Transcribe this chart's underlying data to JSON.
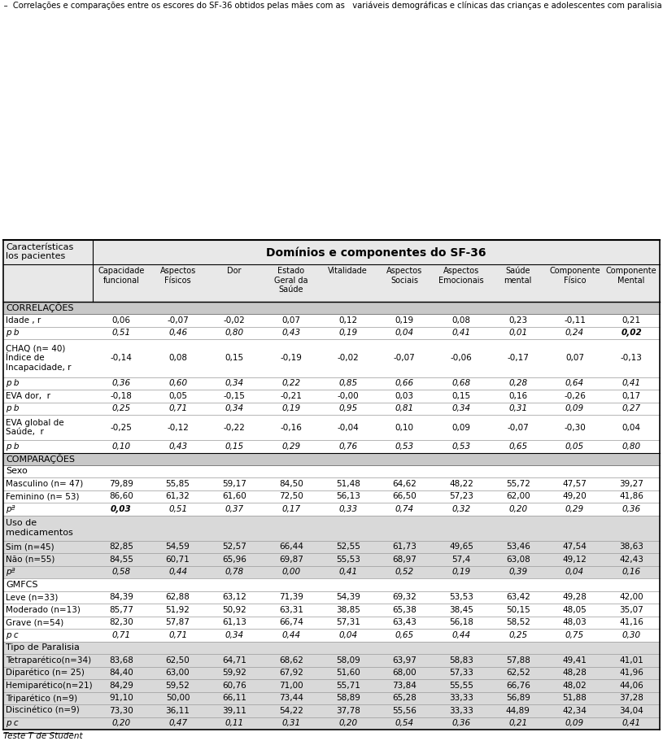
{
  "col_headers": [
    [
      "Capacidade",
      "funcional"
    ],
    [
      "Aspectos",
      "Físicos"
    ],
    [
      "Dor"
    ],
    [
      "Estado",
      "Geral da",
      "Saúde"
    ],
    [
      "Vitalidade"
    ],
    [
      "Aspectos",
      "Sociais"
    ],
    [
      "Aspectos",
      "Emocionais"
    ],
    [
      "Saúde",
      "mental"
    ],
    [
      "Componente",
      "Físico"
    ],
    [
      "Componente",
      "Mental"
    ]
  ],
  "rows": [
    {
      "type": "section_header",
      "label": "CORRELAÇÕES",
      "bg": "#c8c8c8"
    },
    {
      "type": "data",
      "label": "Idade , r",
      "italic": false,
      "values": [
        "0,06",
        "-0,07",
        "-0,02",
        "0,07",
        "0,12",
        "0,19",
        "0,08",
        "0,23",
        "-0,11",
        "0,21"
      ],
      "bold_vals": [],
      "bg": "white"
    },
    {
      "type": "data",
      "label": "p b",
      "italic": true,
      "label_parts": [
        [
          "p",
          false
        ],
        [
          " b",
          false
        ]
      ],
      "values": [
        "0,51",
        "0,46",
        "0,80",
        "0,43",
        "0,19",
        "0,04",
        "0,41",
        "0,01",
        "0,24",
        "0,02"
      ],
      "bold_vals": [
        9
      ],
      "bg": "white"
    },
    {
      "type": "data_multiline",
      "label": "CHAQ (n= 40)\nÍndice de\nIncapacidade, r",
      "italic": false,
      "values": [
        "-0,14",
        "0,08",
        "0,15",
        "-0,19",
        "-0,02",
        "-0,07",
        "-0,06",
        "-0,17",
        "0,07",
        "-0,13"
      ],
      "bold_vals": [],
      "bg": "white"
    },
    {
      "type": "data",
      "label": "p b",
      "italic": true,
      "values": [
        "0,36",
        "0,60",
        "0,34",
        "0,22",
        "0,85",
        "0,66",
        "0,68",
        "0,28",
        "0,64",
        "0,41"
      ],
      "bold_vals": [],
      "bg": "white"
    },
    {
      "type": "data",
      "label": "EVA dor,  r",
      "italic": false,
      "values": [
        "-0,18",
        "0,05",
        "-0,15",
        "-0,21",
        "-0,00",
        "0,03",
        "0,15",
        "0,16",
        "-0,26",
        "0,17"
      ],
      "bold_vals": [],
      "bg": "white"
    },
    {
      "type": "data",
      "label": "p b",
      "italic": true,
      "values": [
        "0,25",
        "0,71",
        "0,34",
        "0,19",
        "0,95",
        "0,81",
        "0,34",
        "0,31",
        "0,09",
        "0,27"
      ],
      "bold_vals": [],
      "bg": "white"
    },
    {
      "type": "data_multiline",
      "label": "EVA global de\nSaúde,  r",
      "italic": false,
      "values": [
        "-0,25",
        "-0,12",
        "-0,22",
        "-0,16",
        "-0,04",
        "0,10",
        "0,09",
        "-0,07",
        "-0,30",
        "0,04"
      ],
      "bold_vals": [],
      "bg": "white"
    },
    {
      "type": "data",
      "label": "p b",
      "italic": true,
      "values": [
        "0,10",
        "0,43",
        "0,15",
        "0,29",
        "0,76",
        "0,53",
        "0,53",
        "0,65",
        "0,05",
        "0,80"
      ],
      "bold_vals": [],
      "bg": "white"
    },
    {
      "type": "section_header",
      "label": "COMPARAÇÕES",
      "bg": "#c8c8c8"
    },
    {
      "type": "subheader",
      "label": "Sexo",
      "bg": "white"
    },
    {
      "type": "data",
      "label": "Masculino (n= 47)",
      "italic": false,
      "values": [
        "79,89",
        "55,85",
        "59,17",
        "84,50",
        "51,48",
        "64,62",
        "48,22",
        "55,72",
        "47,57",
        "39,27"
      ],
      "bold_vals": [],
      "bg": "white"
    },
    {
      "type": "data",
      "label": "Feminino (n= 53)",
      "italic": false,
      "values": [
        "86,60",
        "61,32",
        "61,60",
        "72,50",
        "56,13",
        "66,50",
        "57,23",
        "62,00",
        "49,20",
        "41,86"
      ],
      "bold_vals": [],
      "bg": "white"
    },
    {
      "type": "data",
      "label": "pª",
      "italic": true,
      "values": [
        "0,03",
        "0,51",
        "0,37",
        "0,17",
        "0,33",
        "0,74",
        "0,32",
        "0,20",
        "0,29",
        "0,36"
      ],
      "bold_vals": [
        0
      ],
      "bg": "white"
    },
    {
      "type": "subheader",
      "label": "Uso de\nmedicamentos",
      "bg": "#d9d9d9"
    },
    {
      "type": "data",
      "label": "Sim (n=45)",
      "italic": false,
      "values": [
        "82,85",
        "54,59",
        "52,57",
        "66,44",
        "52,55",
        "61,73",
        "49,65",
        "53,46",
        "47,54",
        "38,63"
      ],
      "bold_vals": [],
      "bg": "#d9d9d9"
    },
    {
      "type": "data",
      "label": "Não (n=55)",
      "italic": false,
      "values": [
        "84,55",
        "60,71",
        "65,96",
        "69,87",
        "55,53",
        "68,97",
        "57,4",
        "63,08",
        "49,12",
        "42,43"
      ],
      "bold_vals": [],
      "bg": "#d9d9d9"
    },
    {
      "type": "data",
      "label": "pª",
      "italic": true,
      "values": [
        "0,58",
        "0,44",
        "0,78",
        "0,00",
        "0,41",
        "0,52",
        "0,19",
        "0,39",
        "0,04",
        "0,16"
      ],
      "bold_vals": [],
      "bg": "#d9d9d9"
    },
    {
      "type": "subheader",
      "label": "GMFCS",
      "bg": "white"
    },
    {
      "type": "data",
      "label": "Leve (n=33)",
      "italic": false,
      "values": [
        "84,39",
        "62,88",
        "63,12",
        "71,39",
        "54,39",
        "69,32",
        "53,53",
        "63,42",
        "49,28",
        "42,00"
      ],
      "bold_vals": [],
      "bg": "white"
    },
    {
      "type": "data",
      "label": "Moderado (n=13)",
      "italic": false,
      "values": [
        "85,77",
        "51,92",
        "50,92",
        "63,31",
        "38,85",
        "65,38",
        "38,45",
        "50,15",
        "48,05",
        "35,07"
      ],
      "bold_vals": [],
      "bg": "white"
    },
    {
      "type": "data",
      "label": "Grave (n=54)",
      "italic": false,
      "values": [
        "82,30",
        "57,87",
        "61,13",
        "66,74",
        "57,31",
        "63,43",
        "56,18",
        "58,52",
        "48,03",
        "41,16"
      ],
      "bold_vals": [],
      "bg": "white"
    },
    {
      "type": "data",
      "label": "p c",
      "italic": true,
      "values": [
        "0,71",
        "0,71",
        "0,34",
        "0,44",
        "0,04",
        "0,65",
        "0,44",
        "0,25",
        "0,75",
        "0,30"
      ],
      "bold_vals": [],
      "bg": "white"
    },
    {
      "type": "subheader",
      "label": "Tipo de Paralisia",
      "bg": "#d9d9d9"
    },
    {
      "type": "data",
      "label": "Tetraparético(n=34)",
      "italic": false,
      "values": [
        "83,68",
        "62,50",
        "64,71",
        "68,62",
        "58,09",
        "63,97",
        "58,83",
        "57,88",
        "49,41",
        "41,01"
      ],
      "bold_vals": [],
      "bg": "#d9d9d9"
    },
    {
      "type": "data",
      "label": "Diparético (n= 25)",
      "italic": false,
      "values": [
        "84,40",
        "63,00",
        "59,92",
        "67,92",
        "51,60",
        "68,00",
        "57,33",
        "62,52",
        "48,28",
        "41,96"
      ],
      "bold_vals": [],
      "bg": "#d9d9d9"
    },
    {
      "type": "data",
      "label": "Hemiparético(n=21)",
      "italic": false,
      "values": [
        "84,29",
        "59,52",
        "60,76",
        "71,00",
        "55,71",
        "73,84",
        "55,55",
        "66,76",
        "48,02",
        "44,06"
      ],
      "bold_vals": [],
      "bg": "#d9d9d9"
    },
    {
      "type": "data",
      "label": "Triparético (n=9)",
      "italic": false,
      "values": [
        "91,10",
        "50,00",
        "66,11",
        "73,44",
        "58,89",
        "65,28",
        "33,33",
        "56,89",
        "51,88",
        "37,28"
      ],
      "bold_vals": [],
      "bg": "#d9d9d9"
    },
    {
      "type": "data",
      "label": "Discinético (n=9)",
      "italic": false,
      "values": [
        "73,30",
        "36,11",
        "39,11",
        "54,22",
        "37,78",
        "55,56",
        "33,33",
        "44,89",
        "42,34",
        "34,04"
      ],
      "bold_vals": [],
      "bg": "#d9d9d9"
    },
    {
      "type": "data",
      "label": "p c",
      "italic": true,
      "values": [
        "0,20",
        "0,47",
        "0,11",
        "0,31",
        "0,20",
        "0,54",
        "0,36",
        "0,21",
        "0,09",
        "0,41"
      ],
      "bold_vals": [],
      "bg": "#d9d9d9"
    }
  ],
  "footer": "Teste T de Student"
}
